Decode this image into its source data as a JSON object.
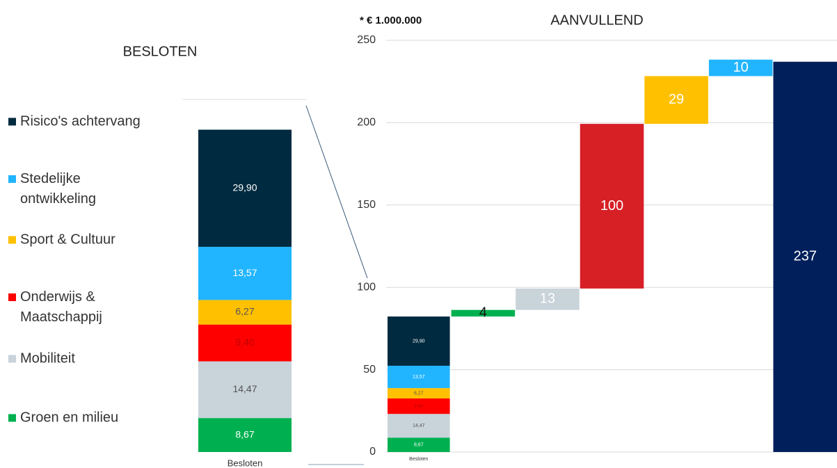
{
  "chart_data": [
    {
      "type": "stacked_bar",
      "title": "BESLOTEN",
      "categories": [
        "Besloten"
      ],
      "ylim": [
        0,
        90
      ],
      "series": [
        {
          "name": "Groen en milieu",
          "color": "#00b050",
          "values": [
            8.67
          ],
          "value_labels": [
            "8,67"
          ]
        },
        {
          "name": "Mobiliteit",
          "color": "#c8d3da",
          "values": [
            14.47
          ],
          "value_labels": [
            "14,47"
          ]
        },
        {
          "name": "Onderwijs & Maatschappij",
          "color": "#ff0000",
          "values": [
            9.4
          ],
          "value_labels": [
            "9,40"
          ]
        },
        {
          "name": "Sport & Cultuur",
          "color": "#ffc000",
          "values": [
            6.27
          ],
          "value_labels": [
            "6,27"
          ]
        },
        {
          "name": "Stedelijke ontwikkeling",
          "color": "#22b5ff",
          "values": [
            13.57
          ],
          "value_labels": [
            "13,57"
          ]
        },
        {
          "name": "Risico's achtervang",
          "color": "#002a3f",
          "values": [
            29.9
          ],
          "value_labels": [
            "29,90"
          ]
        }
      ]
    },
    {
      "type": "waterfall",
      "title": "AANVULLEND",
      "subtitle": "* € 1.000.000",
      "ylim": [
        0,
        250
      ],
      "yticks": [
        0,
        50,
        100,
        150,
        200,
        250
      ],
      "grid": true,
      "steps": {
        "values": [
          4,
          13,
          100,
          29,
          10
        ],
        "colors": [
          "#00b050",
          "#c8d3da",
          "#d71f26",
          "#ffc000",
          "#22b5ff"
        ]
      },
      "total": {
        "value": 237,
        "color": "#001f5b"
      }
    }
  ]
}
